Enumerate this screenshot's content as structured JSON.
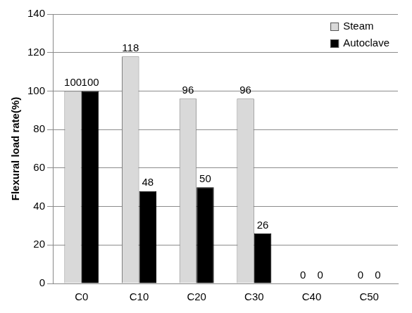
{
  "chart_data": {
    "type": "bar",
    "categories": [
      "C0",
      "C10",
      "C20",
      "C30",
      "C40",
      "C50"
    ],
    "series": [
      {
        "name": "Steam",
        "color": "#d9d9d9",
        "values": [
          100,
          118,
          96,
          96,
          0,
          0
        ]
      },
      {
        "name": "Autoclave",
        "color": "#000000",
        "values": [
          100,
          48,
          50,
          26,
          0,
          0
        ]
      }
    ],
    "ylabel": "Flexural load rate(%)",
    "ylim": [
      0,
      140
    ],
    "yticks": [
      0,
      20,
      40,
      60,
      80,
      100,
      120,
      140
    ],
    "grid": true,
    "legend": "upper right",
    "data_labels": true
  }
}
